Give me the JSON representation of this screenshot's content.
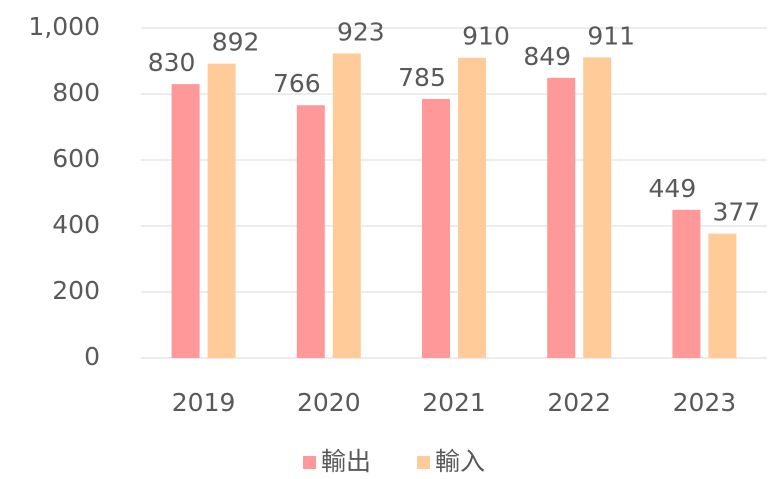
{
  "chart_data": {
    "type": "bar",
    "categories": [
      "2019",
      "2020",
      "2021",
      "2022",
      "2023"
    ],
    "series": [
      {
        "name": "輸出",
        "color": "#ff9999",
        "values": [
          830,
          766,
          785,
          849,
          449
        ]
      },
      {
        "name": "輸入",
        "color": "#ffcc99",
        "values": [
          892,
          923,
          910,
          911,
          377
        ]
      }
    ],
    "ylim": [
      0,
      1000
    ],
    "yticks": [
      0,
      200,
      400,
      600,
      800,
      {
        "value": 1000,
        "label": "1,000"
      }
    ],
    "grid": true,
    "legend": "bottom"
  }
}
